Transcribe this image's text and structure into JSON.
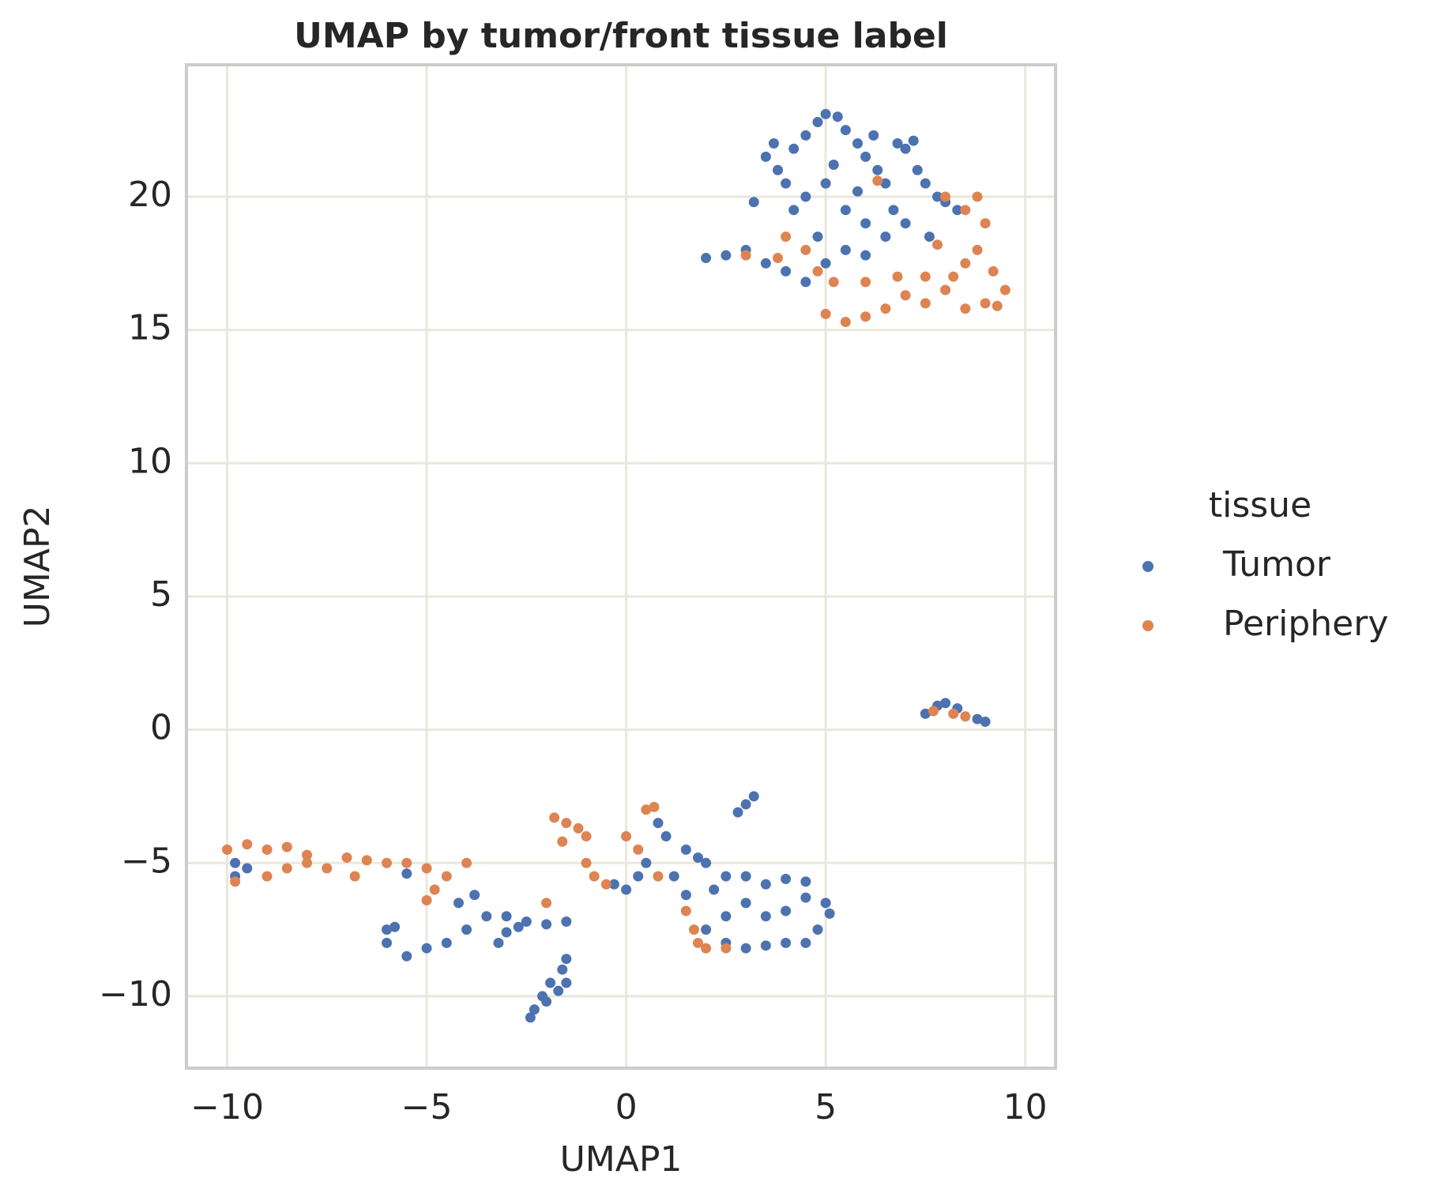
{
  "chart_data": {
    "type": "scatter",
    "title": "UMAP by tumor/front tissue label",
    "x_label": "UMAP1",
    "y_label": "UMAP2",
    "legend_title": "tissue",
    "legend": "right",
    "grid": true,
    "xlim": [
      -11.02,
      10.76
    ],
    "ylim": [
      -12.7,
      24.95
    ],
    "xticks": [
      {
        "value": -10,
        "label": "−10"
      },
      {
        "value": -5,
        "label": "−5"
      },
      0,
      5,
      10
    ],
    "yticks": [
      {
        "value": -10,
        "label": "−10"
      },
      {
        "value": -5,
        "label": "−5"
      },
      0,
      5,
      10,
      15,
      20
    ],
    "series": [
      {
        "name": "Tumor",
        "color": "#4c72b0",
        "x": [
          2.0,
          2.5,
          3.0,
          3.5,
          3.8,
          4.0,
          4.2,
          4.5,
          4.8,
          5.0,
          5.3,
          5.5,
          5.8,
          6.0,
          6.3,
          6.5,
          6.8,
          7.0,
          7.3,
          7.5,
          7.8,
          8.0,
          8.3,
          4.2,
          4.5,
          5.0,
          5.5,
          6.0,
          6.5,
          7.0,
          4.0,
          4.5,
          5.0,
          5.5,
          6.0,
          3.5,
          3.2,
          5.2,
          6.2,
          7.2,
          3.7,
          4.8,
          5.8,
          6.7,
          7.6,
          7.5,
          7.8,
          8.0,
          8.3,
          8.8,
          9.0,
          3.2,
          3.0,
          2.8,
          2.0,
          2.5,
          3.0,
          3.5,
          4.0,
          4.5,
          5.0,
          5.1,
          4.8,
          4.5,
          4.0,
          3.5,
          3.0,
          2.5,
          2.0,
          2.5,
          3.0,
          3.5,
          4.0,
          4.5,
          2.2,
          1.5,
          1.0,
          0.8,
          0.5,
          1.2,
          1.8,
          0,
          -0.3,
          0.3,
          1.5,
          -1.5,
          -1.7,
          -2.0,
          -2.3,
          -2.4,
          -1.6,
          -1.9,
          -2.1,
          -1.5,
          -3.0,
          -2.5,
          -2.0,
          -1.5,
          -3.2,
          -3.0,
          -2.7,
          -4.0,
          -4.5,
          -5.0,
          -5.5,
          -6.0,
          -6.0,
          -5.8,
          -4.2,
          -3.8,
          -3.5,
          -9.8,
          -9.8,
          -9.5,
          -5.5
        ],
        "values": [
          17.7,
          17.8,
          18.0,
          21.5,
          21.0,
          20.5,
          21.8,
          22.3,
          22.8,
          23.1,
          23.0,
          22.5,
          22.0,
          21.5,
          21.0,
          20.5,
          22.0,
          21.8,
          21.0,
          20.5,
          20.0,
          19.8,
          19.5,
          19.5,
          20.0,
          20.5,
          19.5,
          19.0,
          18.5,
          19.0,
          17.2,
          16.8,
          17.5,
          18.0,
          17.8,
          17.5,
          19.8,
          21.2,
          22.3,
          22.1,
          22.0,
          18.5,
          20.2,
          19.5,
          18.5,
          0.6,
          0.9,
          1.0,
          0.8,
          0.4,
          0.3,
          -2.5,
          -2.8,
          -3.1,
          -5.0,
          -5.5,
          -5.5,
          -5.8,
          -5.6,
          -5.7,
          -6.5,
          -6.9,
          -7.5,
          -8.0,
          -8.0,
          -8.1,
          -8.2,
          -8.0,
          -7.5,
          -7.0,
          -6.5,
          -7.0,
          -6.8,
          -6.3,
          -6.0,
          -4.5,
          -4.0,
          -3.5,
          -5.0,
          -5.5,
          -4.8,
          -6.0,
          -5.8,
          -5.5,
          -6.2,
          -9.5,
          -9.8,
          -10.2,
          -10.5,
          -10.8,
          -9.0,
          -9.5,
          -10.0,
          -8.6,
          -7.0,
          -7.2,
          -7.3,
          -7.2,
          -8.0,
          -7.6,
          -7.4,
          -7.5,
          -8.0,
          -8.2,
          -8.5,
          -8.0,
          -7.5,
          -7.4,
          -6.5,
          -6.2,
          -7.0,
          -5.0,
          -5.5,
          -5.2,
          -5.4
        ]
      },
      {
        "name": "Periphery",
        "color": "#dd8452",
        "x": [
          8.0,
          8.5,
          9.0,
          8.8,
          8.5,
          9.2,
          9.5,
          9.0,
          8.5,
          8.0,
          7.5,
          7.0,
          6.5,
          6.0,
          5.5,
          5.0,
          6.8,
          7.5,
          8.2,
          6.0,
          5.2,
          4.0,
          3.8,
          4.5,
          3.0,
          8.8,
          7.8,
          9.3,
          6.3,
          4.8,
          7.7,
          8.2,
          8.5,
          -10,
          -9.5,
          -9.0,
          -8.5,
          -8.0,
          -9.8,
          -9.0,
          -8.5,
          -8.0,
          -7.5,
          -7.0,
          -6.5,
          -6.0,
          -5.5,
          -5.0,
          -4.5,
          -4.0,
          -5.0,
          -4.8,
          -6.8,
          -1.8,
          -1.5,
          -1.2,
          -1.0,
          -1.6,
          -1.0,
          -0.8,
          -0.5,
          0,
          0.5,
          0.7,
          0.3,
          0.8,
          1.5,
          1.7,
          1.8,
          2.0,
          2.5,
          -2.0
        ],
        "values": [
          20.0,
          19.5,
          19.0,
          18.0,
          17.5,
          17.2,
          16.5,
          16.0,
          15.8,
          16.5,
          16.0,
          16.3,
          15.8,
          15.5,
          15.3,
          15.6,
          17.0,
          17.0,
          17.0,
          16.8,
          16.8,
          18.5,
          17.7,
          18.0,
          17.8,
          20.0,
          18.2,
          15.9,
          20.6,
          17.2,
          0.7,
          0.6,
          0.5,
          -4.5,
          -4.3,
          -4.5,
          -4.4,
          -4.7,
          -5.7,
          -5.5,
          -5.2,
          -5.0,
          -5.2,
          -4.8,
          -4.9,
          -5.0,
          -5.0,
          -5.2,
          -5.5,
          -5.0,
          -6.4,
          -6.0,
          -5.5,
          -3.3,
          -3.5,
          -3.7,
          -4.0,
          -4.2,
          -5.0,
          -5.5,
          -5.8,
          -4.0,
          -3.0,
          -2.9,
          -4.5,
          -5.5,
          -6.8,
          -7.5,
          -8.0,
          -8.2,
          -8.2,
          -6.5
        ]
      }
    ]
  }
}
